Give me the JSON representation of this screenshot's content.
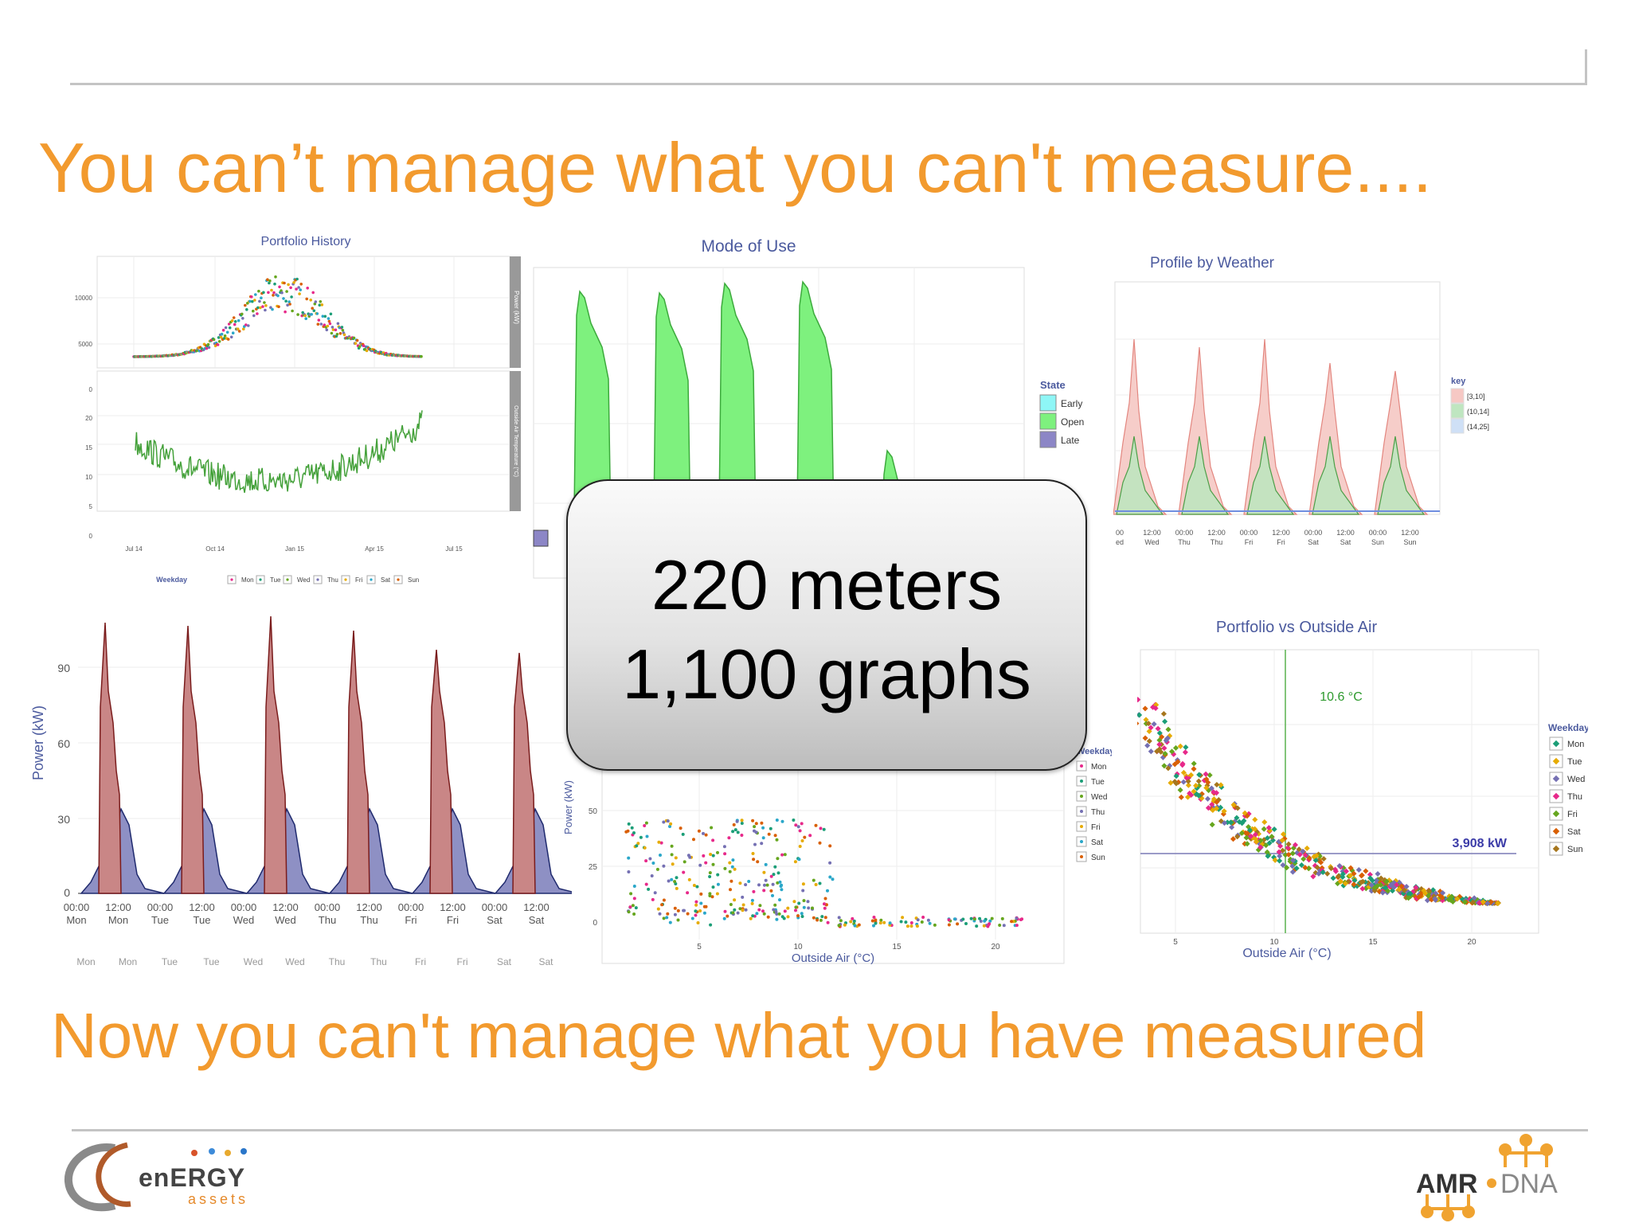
{
  "slide": {
    "title": "You can’t manage what you can't measure....",
    "subtitle": "Now you can't manage what you have measured",
    "callout_line1": "220 meters",
    "callout_line2": "1,100 graphs",
    "accent_color": "#f29a2e"
  },
  "logos": {
    "left_text_main": "enERGY",
    "left_text_sub": "assets",
    "right_text_a": "AMR",
    "right_text_b": "DNA"
  },
  "chart_data": [
    {
      "type": "line",
      "title": "Portfolio History",
      "panels": [
        {
          "ylabel": "Power (kW)",
          "yticks": [
            "10000",
            "5000",
            "0"
          ]
        },
        {
          "ylabel": "Outside Air Temperature (°C)",
          "yticks": [
            "20",
            "15",
            "10",
            "5",
            "0"
          ]
        }
      ],
      "xticks": [
        "Jul 14",
        "Oct 14",
        "Jan 15",
        "Apr 15",
        "Jul 15"
      ],
      "legend": {
        "title": "Weekday",
        "entries": [
          "Mon",
          "Tue",
          "Wed",
          "Thu",
          "Fri",
          "Sat",
          "Sun"
        ]
      }
    },
    {
      "type": "area",
      "title": "Mode of Use",
      "legend": {
        "title": "State",
        "entries": [
          "Early",
          "Open",
          "Late"
        ]
      },
      "colors": {
        "Early": "#8ef6f6",
        "Open": "#7ef17e",
        "Late": "#8c86c6"
      }
    },
    {
      "type": "area",
      "title": "Profile by Weather",
      "legend": {
        "title": "key",
        "entries": [
          "[3,10]",
          "(10,14]",
          "(14,25]"
        ]
      },
      "xticks": [
        "00",
        "12:00",
        "00:00",
        "12:00",
        "00:00",
        "12:00",
        "00:00",
        "12:00",
        "00:00",
        "12:00"
      ],
      "xticks2": [
        "ed",
        "Wed",
        "Thu",
        "Thu",
        "Fri",
        "Fri",
        "Sat",
        "Sat",
        "Sun",
        "Sun"
      ]
    },
    {
      "type": "area",
      "title": "",
      "ylabel": "Power (kW)",
      "yticks": [
        "90",
        "60",
        "30",
        "0"
      ],
      "xticks": [
        "00:00",
        "12:00",
        "00:00",
        "12:00",
        "00:00",
        "12:00",
        "00:00",
        "12:00",
        "00:00",
        "12:00",
        "00:00",
        "12:00"
      ],
      "xticks2": [
        "Mon",
        "Mon",
        "Tue",
        "Tue",
        "Wed",
        "Wed",
        "Thu",
        "Thu",
        "Fri",
        "Fri",
        "Sat",
        "Sat"
      ],
      "xticks3": [
        "Mon",
        "Mon",
        "Tue",
        "Tue",
        "Wed",
        "Wed",
        "Thu",
        "Thu",
        "Fri",
        "Fri",
        "Sat",
        "Sat"
      ]
    },
    {
      "type": "scatter",
      "title": "",
      "xlabel": "Outside Air (°C)",
      "ylabel": "Power (kW)",
      "yticks": [
        "50",
        "25",
        "0"
      ],
      "xticks": [
        "5",
        "10",
        "15",
        "20"
      ],
      "legend": {
        "title": "Weekday",
        "entries": [
          "Mon",
          "Tue",
          "Wed",
          "Thu",
          "Fri",
          "Sat",
          "Sun"
        ]
      }
    },
    {
      "type": "scatter",
      "title": "Portfolio vs Outside Air",
      "xlabel": "Outside Air (°C)",
      "xticks": [
        "5",
        "10",
        "15",
        "20"
      ],
      "annotations": [
        "10.6 °C",
        "3,908 kW"
      ],
      "legend": {
        "title": "Weekday",
        "entries": [
          "Mon",
          "Tue",
          "Wed",
          "Thu",
          "Fri",
          "Sat",
          "Sun"
        ]
      }
    }
  ]
}
